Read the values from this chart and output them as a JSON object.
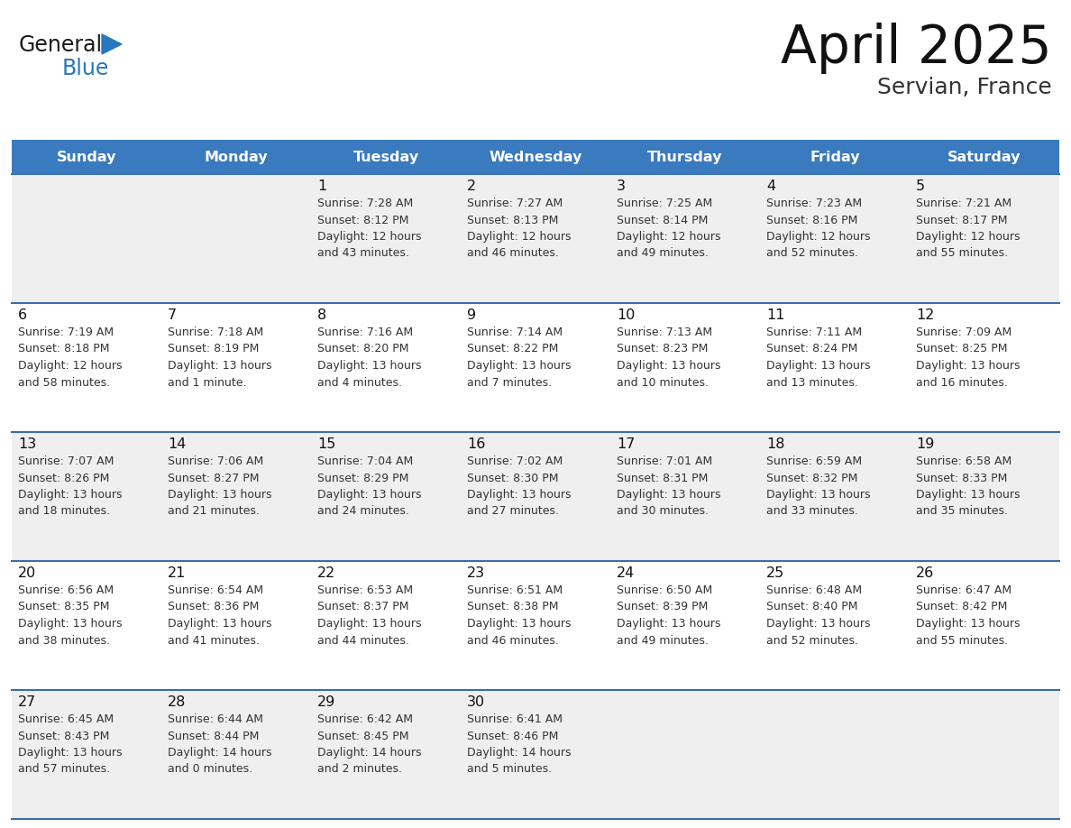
{
  "title": "April 2025",
  "subtitle": "Servian, France",
  "header_color": "#3a7abf",
  "header_text_color": "#ffffff",
  "row_bg_odd": "#efefef",
  "row_bg_even": "#ffffff",
  "border_color": "#3a6ea5",
  "title_color": "#111111",
  "subtitle_color": "#333333",
  "day_num_color": "#111111",
  "cell_text_color": "#333333",
  "logo_general_color": "#1a1a1a",
  "logo_blue_color": "#2878c0",
  "days_of_week": [
    "Sunday",
    "Monday",
    "Tuesday",
    "Wednesday",
    "Thursday",
    "Friday",
    "Saturday"
  ],
  "weeks": [
    [
      {
        "day": null,
        "info": null
      },
      {
        "day": null,
        "info": null
      },
      {
        "day": 1,
        "info": "Sunrise: 7:28 AM\nSunset: 8:12 PM\nDaylight: 12 hours\nand 43 minutes."
      },
      {
        "day": 2,
        "info": "Sunrise: 7:27 AM\nSunset: 8:13 PM\nDaylight: 12 hours\nand 46 minutes."
      },
      {
        "day": 3,
        "info": "Sunrise: 7:25 AM\nSunset: 8:14 PM\nDaylight: 12 hours\nand 49 minutes."
      },
      {
        "day": 4,
        "info": "Sunrise: 7:23 AM\nSunset: 8:16 PM\nDaylight: 12 hours\nand 52 minutes."
      },
      {
        "day": 5,
        "info": "Sunrise: 7:21 AM\nSunset: 8:17 PM\nDaylight: 12 hours\nand 55 minutes."
      }
    ],
    [
      {
        "day": 6,
        "info": "Sunrise: 7:19 AM\nSunset: 8:18 PM\nDaylight: 12 hours\nand 58 minutes."
      },
      {
        "day": 7,
        "info": "Sunrise: 7:18 AM\nSunset: 8:19 PM\nDaylight: 13 hours\nand 1 minute."
      },
      {
        "day": 8,
        "info": "Sunrise: 7:16 AM\nSunset: 8:20 PM\nDaylight: 13 hours\nand 4 minutes."
      },
      {
        "day": 9,
        "info": "Sunrise: 7:14 AM\nSunset: 8:22 PM\nDaylight: 13 hours\nand 7 minutes."
      },
      {
        "day": 10,
        "info": "Sunrise: 7:13 AM\nSunset: 8:23 PM\nDaylight: 13 hours\nand 10 minutes."
      },
      {
        "day": 11,
        "info": "Sunrise: 7:11 AM\nSunset: 8:24 PM\nDaylight: 13 hours\nand 13 minutes."
      },
      {
        "day": 12,
        "info": "Sunrise: 7:09 AM\nSunset: 8:25 PM\nDaylight: 13 hours\nand 16 minutes."
      }
    ],
    [
      {
        "day": 13,
        "info": "Sunrise: 7:07 AM\nSunset: 8:26 PM\nDaylight: 13 hours\nand 18 minutes."
      },
      {
        "day": 14,
        "info": "Sunrise: 7:06 AM\nSunset: 8:27 PM\nDaylight: 13 hours\nand 21 minutes."
      },
      {
        "day": 15,
        "info": "Sunrise: 7:04 AM\nSunset: 8:29 PM\nDaylight: 13 hours\nand 24 minutes."
      },
      {
        "day": 16,
        "info": "Sunrise: 7:02 AM\nSunset: 8:30 PM\nDaylight: 13 hours\nand 27 minutes."
      },
      {
        "day": 17,
        "info": "Sunrise: 7:01 AM\nSunset: 8:31 PM\nDaylight: 13 hours\nand 30 minutes."
      },
      {
        "day": 18,
        "info": "Sunrise: 6:59 AM\nSunset: 8:32 PM\nDaylight: 13 hours\nand 33 minutes."
      },
      {
        "day": 19,
        "info": "Sunrise: 6:58 AM\nSunset: 8:33 PM\nDaylight: 13 hours\nand 35 minutes."
      }
    ],
    [
      {
        "day": 20,
        "info": "Sunrise: 6:56 AM\nSunset: 8:35 PM\nDaylight: 13 hours\nand 38 minutes."
      },
      {
        "day": 21,
        "info": "Sunrise: 6:54 AM\nSunset: 8:36 PM\nDaylight: 13 hours\nand 41 minutes."
      },
      {
        "day": 22,
        "info": "Sunrise: 6:53 AM\nSunset: 8:37 PM\nDaylight: 13 hours\nand 44 minutes."
      },
      {
        "day": 23,
        "info": "Sunrise: 6:51 AM\nSunset: 8:38 PM\nDaylight: 13 hours\nand 46 minutes."
      },
      {
        "day": 24,
        "info": "Sunrise: 6:50 AM\nSunset: 8:39 PM\nDaylight: 13 hours\nand 49 minutes."
      },
      {
        "day": 25,
        "info": "Sunrise: 6:48 AM\nSunset: 8:40 PM\nDaylight: 13 hours\nand 52 minutes."
      },
      {
        "day": 26,
        "info": "Sunrise: 6:47 AM\nSunset: 8:42 PM\nDaylight: 13 hours\nand 55 minutes."
      }
    ],
    [
      {
        "day": 27,
        "info": "Sunrise: 6:45 AM\nSunset: 8:43 PM\nDaylight: 13 hours\nand 57 minutes."
      },
      {
        "day": 28,
        "info": "Sunrise: 6:44 AM\nSunset: 8:44 PM\nDaylight: 14 hours\nand 0 minutes."
      },
      {
        "day": 29,
        "info": "Sunrise: 6:42 AM\nSunset: 8:45 PM\nDaylight: 14 hours\nand 2 minutes."
      },
      {
        "day": 30,
        "info": "Sunrise: 6:41 AM\nSunset: 8:46 PM\nDaylight: 14 hours\nand 5 minutes."
      },
      {
        "day": null,
        "info": null
      },
      {
        "day": null,
        "info": null
      },
      {
        "day": null,
        "info": null
      }
    ]
  ]
}
